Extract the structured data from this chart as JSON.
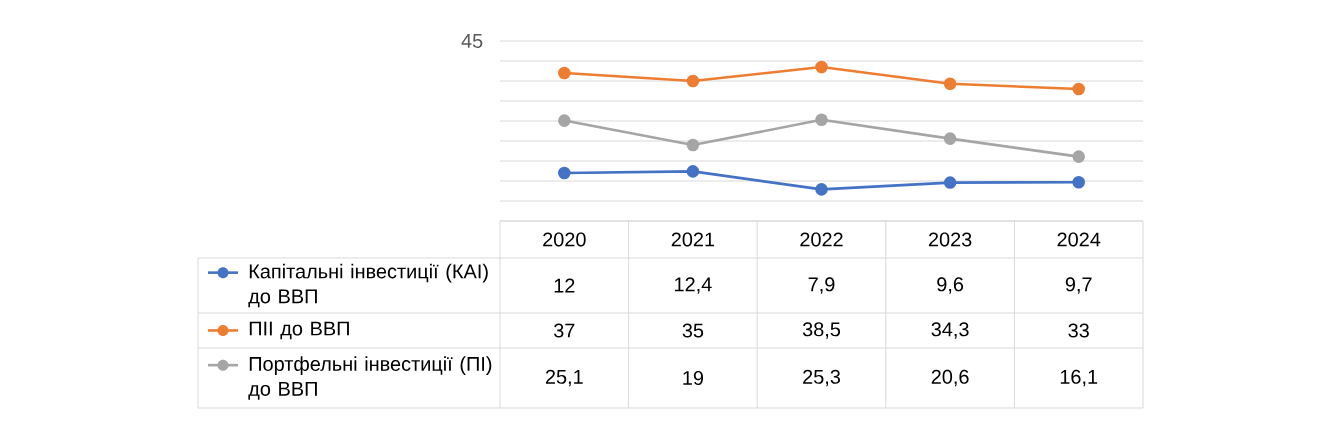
{
  "chart_data": {
    "type": "line",
    "categories": [
      "2020",
      "2021",
      "2022",
      "2023",
      "2024"
    ],
    "series": [
      {
        "name": "Капітальні інвестиції (КАІ) до ВВП",
        "color": "#4472c4",
        "values": [
          12,
          12.4,
          7.9,
          9.6,
          9.7
        ],
        "value_labels": [
          "12",
          "12,4",
          "7,9",
          "9,6",
          "9,7"
        ]
      },
      {
        "name": "ПІІ до ВВП",
        "color": "#ed7d31",
        "values": [
          37,
          35,
          38.5,
          34.3,
          33
        ],
        "value_labels": [
          "37",
          "35",
          "38,5",
          "34,3",
          "33"
        ]
      },
      {
        "name": "Портфельні інвестиції (ПІ) до ВВП",
        "color": "#a5a5a5",
        "values": [
          25.1,
          19,
          25.3,
          20.6,
          16.1
        ],
        "value_labels": [
          "25,1",
          "19",
          "25,3",
          "20,6",
          "16,1"
        ]
      }
    ],
    "ylim": [
      0,
      45
    ],
    "yticks": [
      {
        "value": 0,
        "label": null
      },
      {
        "value": 5,
        "label": null
      },
      {
        "value": 10,
        "label": null
      },
      {
        "value": 15,
        "label": null
      },
      {
        "value": 20,
        "label": null
      },
      {
        "value": 25,
        "label": null
      },
      {
        "value": 30,
        "label": null
      },
      {
        "value": 35,
        "label": null
      },
      {
        "value": 40,
        "label": null
      },
      {
        "value": 45,
        "label": null
      }
    ],
    "annotations": [
      "45"
    ],
    "grid": "y",
    "legend": "bottom",
    "marker": "circle",
    "line_style": "solid"
  }
}
